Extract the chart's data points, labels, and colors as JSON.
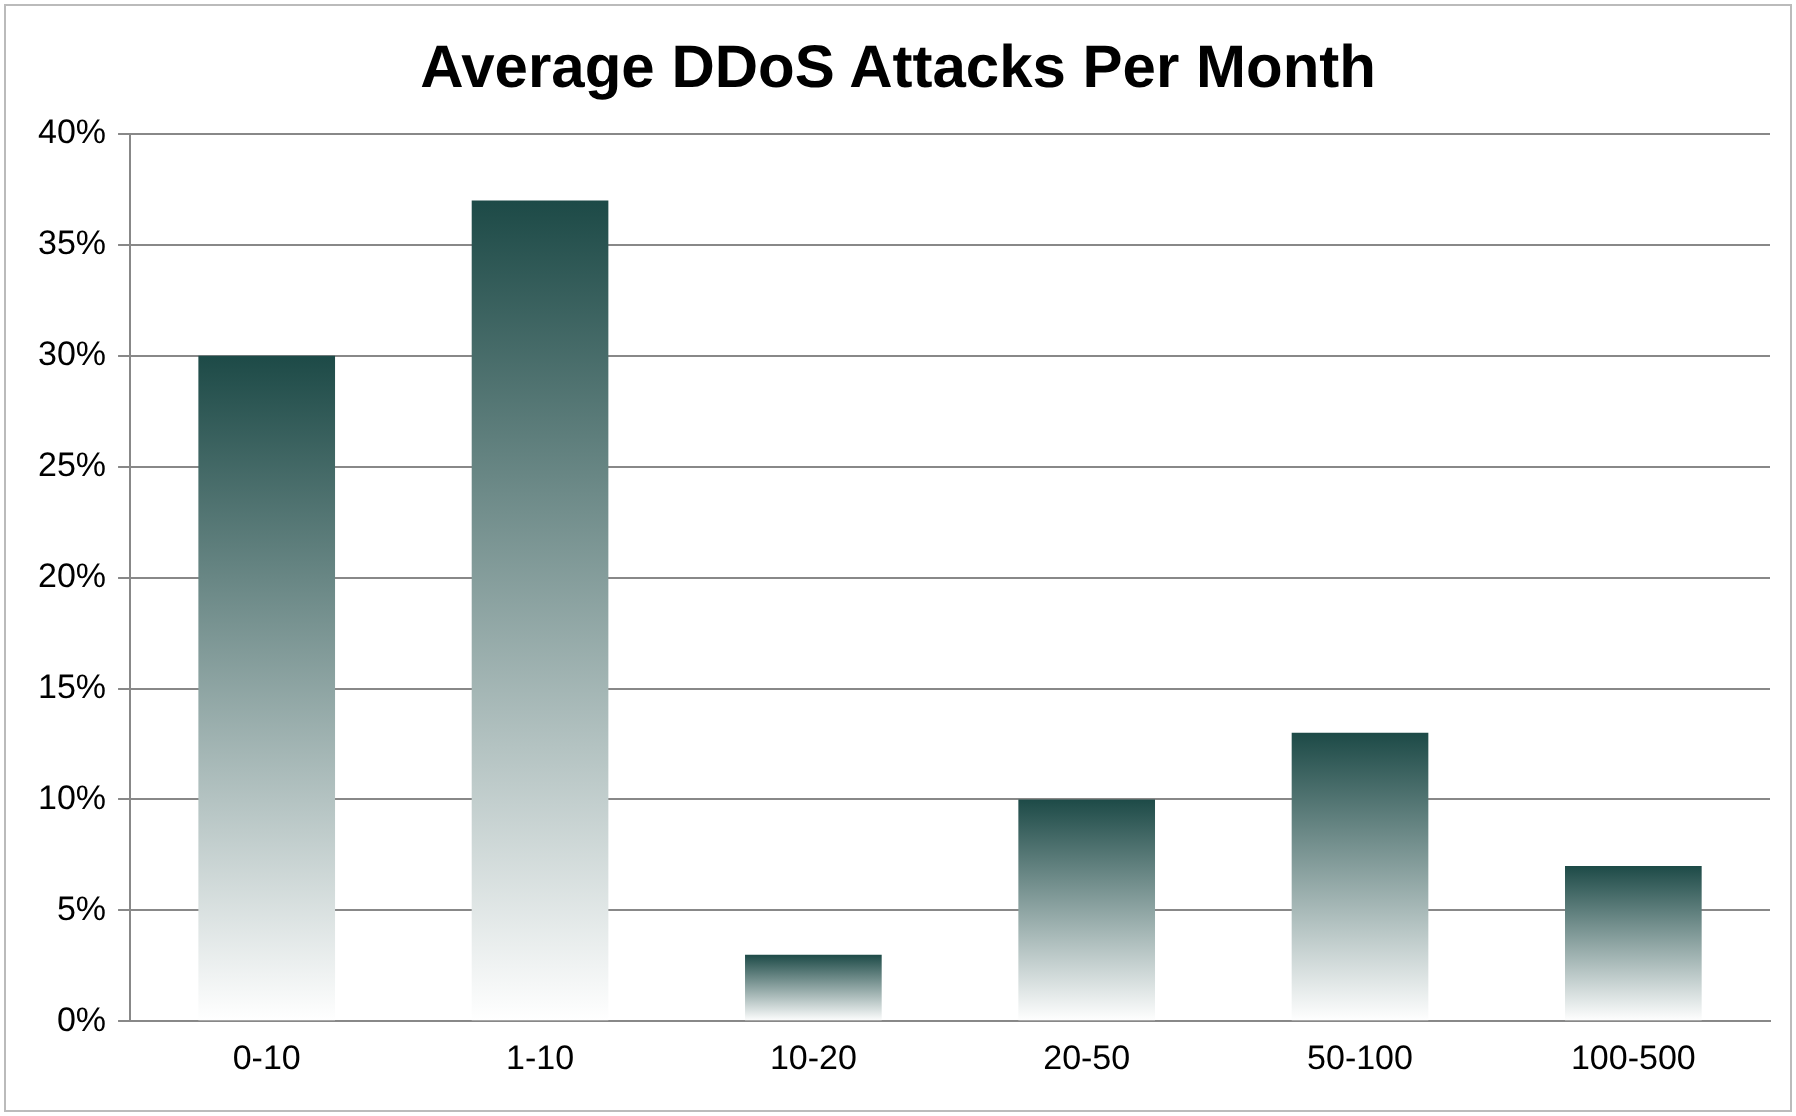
{
  "chart_data": {
    "type": "bar",
    "title": "Average DDoS Attacks Per Month",
    "categories": [
      "0-10",
      "1-10",
      "10-20",
      "20-50",
      "50-100",
      "100-500"
    ],
    "values": [
      30,
      37,
      3,
      10,
      13,
      7
    ],
    "color": "#1d4a47",
    "ylim": [
      0,
      40
    ],
    "yticks": [
      {
        "value": 0,
        "label": "0%"
      },
      {
        "value": 5,
        "label": "5%"
      },
      {
        "value": 10,
        "label": "10%"
      },
      {
        "value": 15,
        "label": "15%"
      },
      {
        "value": 20,
        "label": "20%"
      },
      {
        "value": 25,
        "label": "25%"
      },
      {
        "value": 30,
        "label": "30%"
      },
      {
        "value": 35,
        "label": "35%"
      },
      {
        "value": 40,
        "label": "40%"
      }
    ],
    "grid": "y",
    "legend": false
  }
}
